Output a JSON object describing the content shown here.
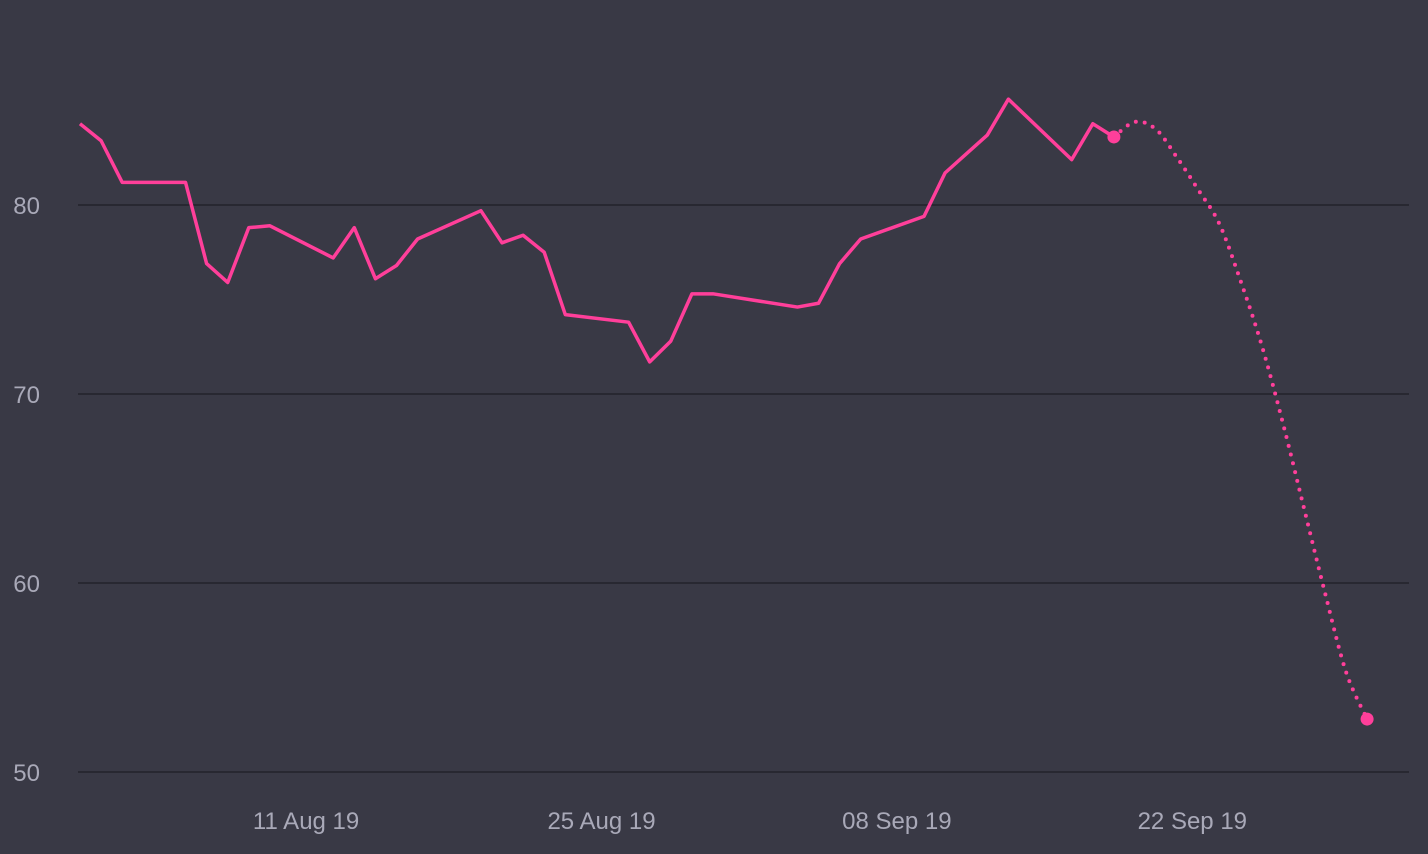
{
  "colors": {
    "background": "#393945",
    "gridline": "#23232b",
    "series": "#ff3f9a",
    "tick_label": "#a9a9b8"
  },
  "chart_data": {
    "type": "line",
    "title": "",
    "xlabel": "",
    "ylabel": "",
    "x_tick_labels": [
      {
        "date": "2019-08-11",
        "label": "11 Aug 19"
      },
      {
        "date": "2019-08-25",
        "label": "25 Aug 19"
      },
      {
        "date": "2019-09-08",
        "label": "08 Sep 19"
      },
      {
        "date": "2019-09-22",
        "label": "22 Sep 19"
      }
    ],
    "y_ticks": [
      50,
      60,
      70,
      80
    ],
    "ylim": [
      50,
      90
    ],
    "xlim": [
      "2019-07-31",
      "2019-10-03"
    ],
    "grid": true,
    "legend": false,
    "series": [
      {
        "style": "solid",
        "end_marker": true,
        "points": [
          [
            "2019-07-31",
            84.3
          ],
          [
            "2019-08-01",
            83.4
          ],
          [
            "2019-08-02",
            81.2
          ],
          [
            "2019-08-03",
            81.2
          ],
          [
            "2019-08-04",
            81.2
          ],
          [
            "2019-08-05",
            81.2
          ],
          [
            "2019-08-06",
            76.9
          ],
          [
            "2019-08-07",
            75.9
          ],
          [
            "2019-08-08",
            78.8
          ],
          [
            "2019-08-09",
            78.9
          ],
          [
            "2019-08-12",
            77.2
          ],
          [
            "2019-08-13",
            78.8
          ],
          [
            "2019-08-14",
            76.1
          ],
          [
            "2019-08-15",
            76.8
          ],
          [
            "2019-08-16",
            78.2
          ],
          [
            "2019-08-19",
            79.7
          ],
          [
            "2019-08-20",
            78.0
          ],
          [
            "2019-08-21",
            78.4
          ],
          [
            "2019-08-22",
            77.5
          ],
          [
            "2019-08-23",
            74.2
          ],
          [
            "2019-08-26",
            73.8
          ],
          [
            "2019-08-27",
            71.7
          ],
          [
            "2019-08-28",
            72.8
          ],
          [
            "2019-08-29",
            75.3
          ],
          [
            "2019-08-30",
            75.3
          ],
          [
            "2019-09-03",
            74.6
          ],
          [
            "2019-09-04",
            74.8
          ],
          [
            "2019-09-05",
            76.9
          ],
          [
            "2019-09-06",
            78.2
          ],
          [
            "2019-09-09",
            79.4
          ],
          [
            "2019-09-10",
            81.7
          ],
          [
            "2019-09-11",
            82.7
          ],
          [
            "2019-09-12",
            83.7
          ],
          [
            "2019-09-13",
            85.6
          ],
          [
            "2019-09-16",
            82.4
          ],
          [
            "2019-09-17",
            84.3
          ],
          [
            "2019-09-18",
            83.6
          ]
        ]
      },
      {
        "style": "dotted",
        "end_marker": true,
        "points": [
          [
            "2019-09-18",
            83.6
          ],
          [
            "2019-09-19",
            84.4
          ],
          [
            "2019-09-20",
            84.0
          ],
          [
            "2019-09-21",
            82.5
          ],
          [
            "2019-09-22",
            80.8
          ],
          [
            "2019-09-23",
            79.0
          ],
          [
            "2019-09-24",
            76.0
          ],
          [
            "2019-09-25",
            72.6
          ],
          [
            "2019-09-26",
            68.5
          ],
          [
            "2019-09-27",
            64.0
          ],
          [
            "2019-09-28",
            59.5
          ],
          [
            "2019-09-29",
            55.3
          ],
          [
            "2019-09-30",
            52.8
          ]
        ]
      }
    ]
  }
}
